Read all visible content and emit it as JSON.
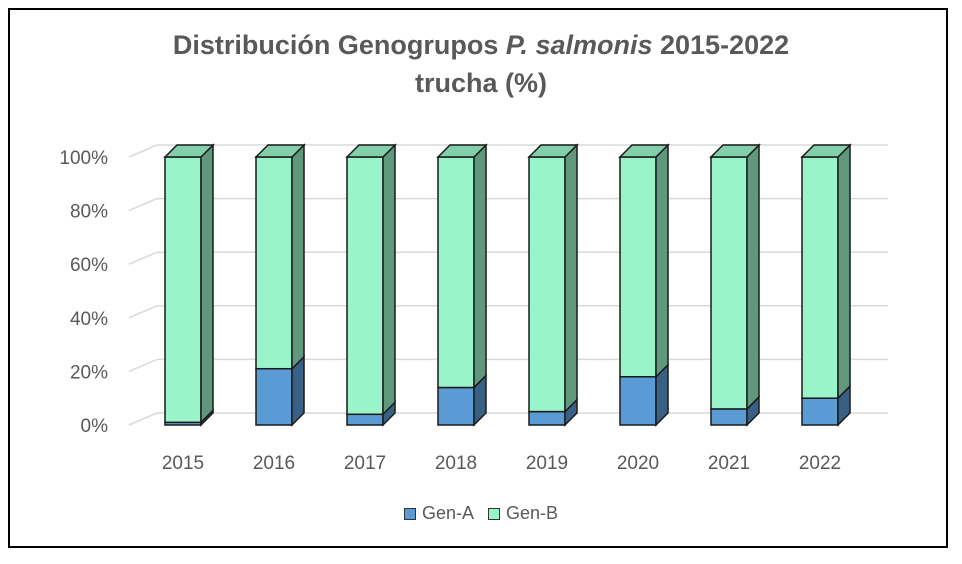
{
  "chart_data": {
    "type": "bar",
    "stacked": true,
    "percent_stacked": true,
    "style": "3d-column",
    "title_part1": "Distribución Genogrupos",
    "title_italic": "P. salmonis",
    "title_part2": "2015-2022",
    "title_line2": "trucha (%)",
    "categories": [
      "2015",
      "2016",
      "2017",
      "2018",
      "2019",
      "2020",
      "2021",
      "2022"
    ],
    "y_ticks": [
      "0%",
      "20%",
      "40%",
      "60%",
      "80%",
      "100%"
    ],
    "ylim": [
      0,
      100
    ],
    "grid": true,
    "legend_position": "bottom",
    "series": [
      {
        "name": "Gen-A",
        "color": "#5b9bd5",
        "values": [
          1,
          21,
          4,
          14,
          5,
          18,
          6,
          10
        ]
      },
      {
        "name": "Gen-B",
        "color": "#99f5c9",
        "values": [
          99,
          79,
          96,
          86,
          95,
          82,
          94,
          90
        ]
      }
    ]
  }
}
